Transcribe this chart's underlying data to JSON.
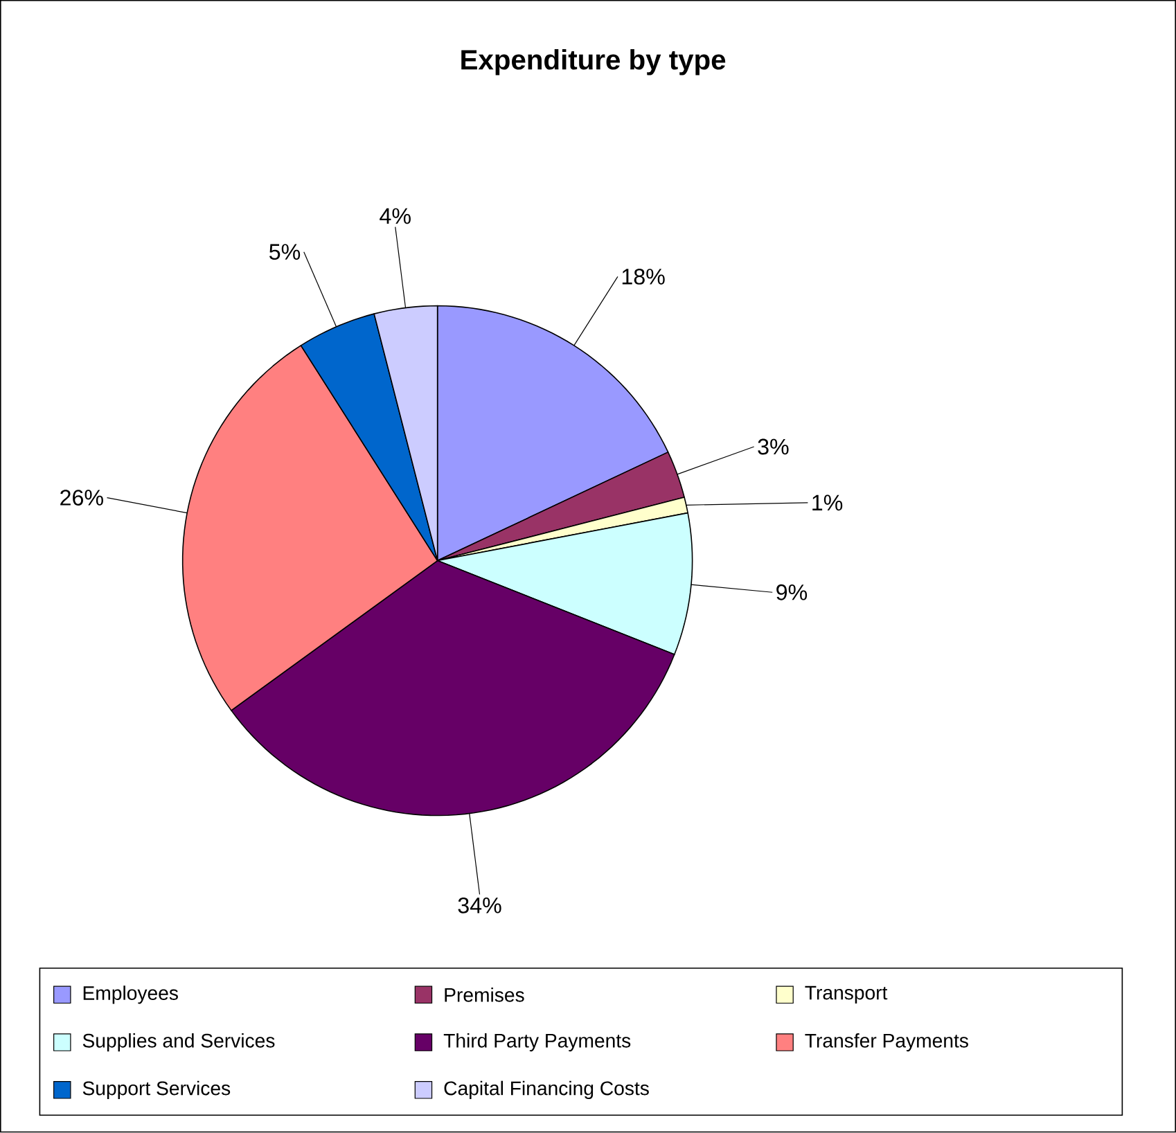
{
  "chart_data": {
    "type": "pie",
    "title": "Expenditure by type",
    "categories": [
      "Employees",
      "Premises",
      "Transport",
      "Supplies and Services",
      "Third Party Payments",
      "Transfer Payments",
      "Support Services",
      "Capital Financing Costs"
    ],
    "values": [
      18,
      3,
      1,
      9,
      34,
      26,
      5,
      4
    ],
    "value_labels": [
      "18%",
      "3%",
      "1%",
      "9%",
      "34%",
      "26%",
      "5%",
      "4%"
    ],
    "colors": [
      "#9999ff",
      "#993366",
      "#ffffcc",
      "#ccffff",
      "#660066",
      "#ff8080",
      "#0066cc",
      "#ccccff"
    ],
    "legend": "bottom"
  }
}
